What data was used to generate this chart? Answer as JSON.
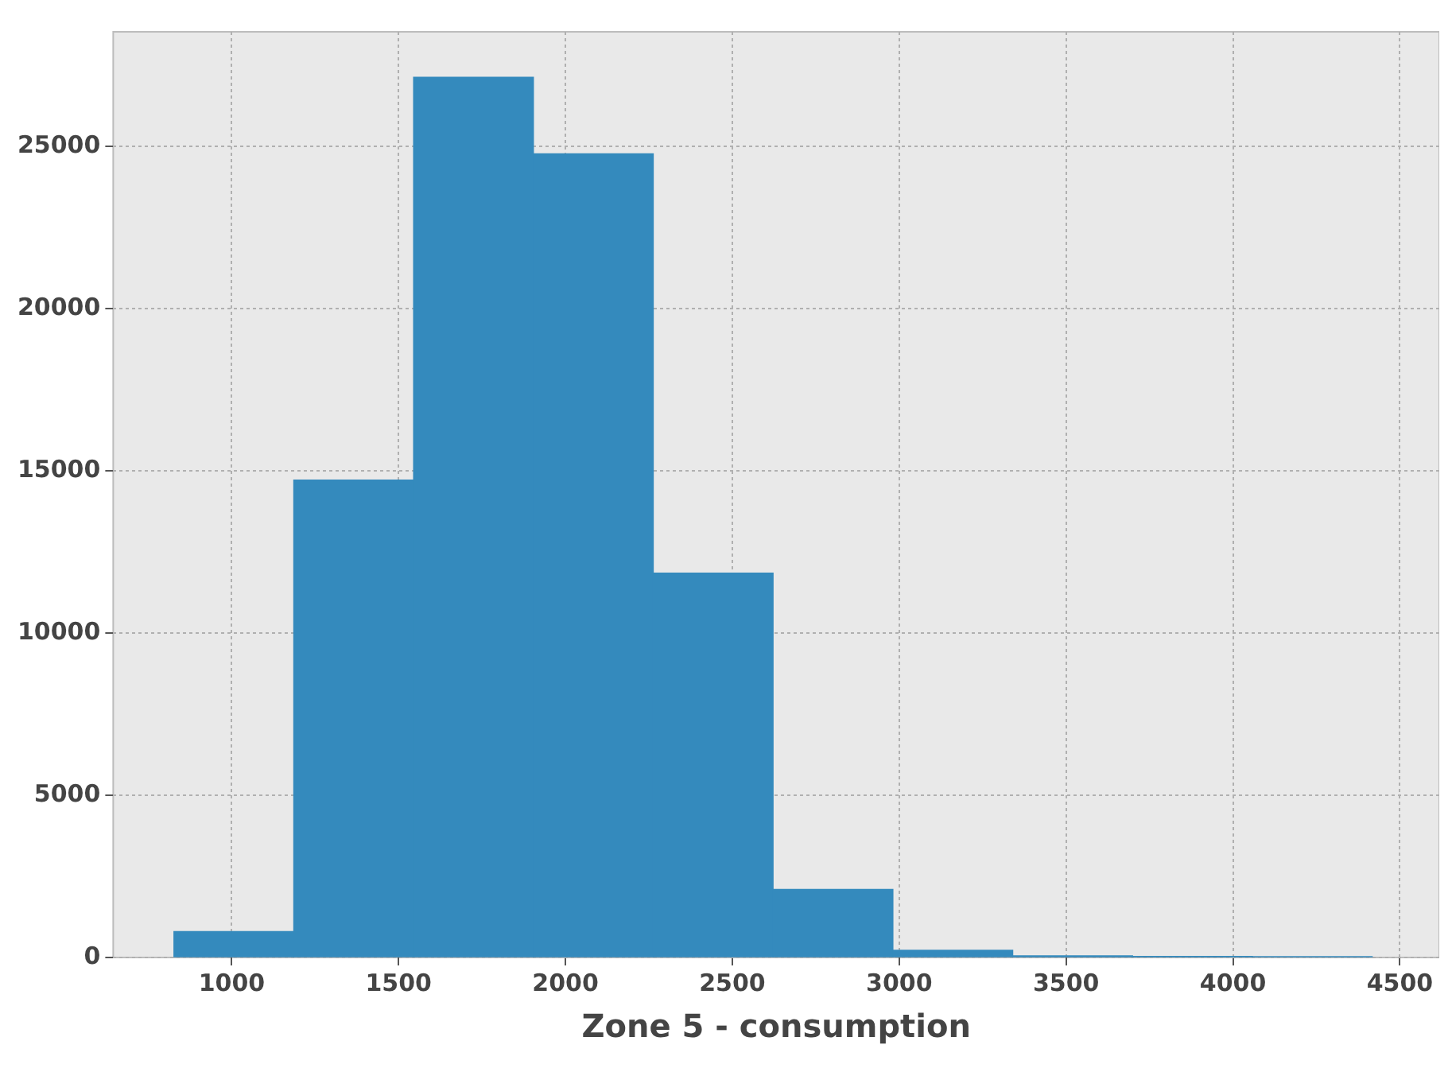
{
  "chart_data": {
    "type": "histogram",
    "xlabel": "Zone 5 - consumption",
    "bins": [
      827,
      1186,
      1545,
      1904,
      2263,
      2622,
      2981,
      3340,
      3699,
      4058,
      4417
    ],
    "values": [
      800,
      14720,
      27140,
      24780,
      11850,
      2100,
      220,
      50,
      30,
      20
    ],
    "color": "#348abd",
    "xlim": [
      645,
      4618
    ],
    "xticks": [
      1000,
      1500,
      2000,
      2500,
      3000,
      3500,
      4000,
      4500
    ],
    "ylim": [
      0,
      28540
    ],
    "yticks": [
      0,
      5000,
      10000,
      15000,
      20000,
      25000
    ],
    "grid": true,
    "legend": false
  }
}
